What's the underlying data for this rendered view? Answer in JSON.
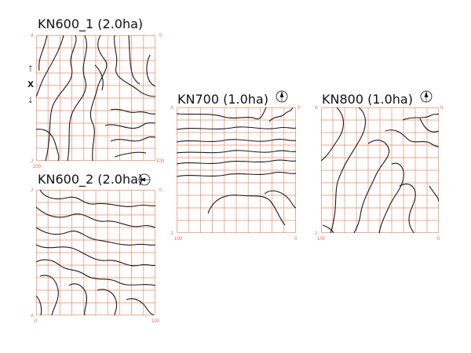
{
  "plots": {
    "kn600_1": {
      "title": "KN600_1 (2.0ha)",
      "ticks": {
        "top_left": "A",
        "top_right": "0",
        "bottom_left": "J",
        "bottom_left_num": "100",
        "bottom_right": "100"
      }
    },
    "kn600_2": {
      "title": "KN600_2 (2.0ha)",
      "ticks": {
        "top_left": "J",
        "top_right": "0",
        "bottom_left": "A",
        "bottom_left_num": "0",
        "bottom_right": "100"
      },
      "compass": "compass-west-icon"
    },
    "kn700": {
      "title": "KN700 (1.0ha)",
      "ticks": {
        "top_left": "A",
        "top_right": "0",
        "bottom_left": "J",
        "bottom_left_num": "100",
        "bottom_right": "0"
      },
      "compass": "compass-north-icon"
    },
    "kn800": {
      "title": "KN800 (1.0ha)",
      "ticks": {
        "top_left": "A",
        "top_right": "0",
        "bottom_left": "J",
        "bottom_left_num": "100",
        "bottom_right": "0"
      },
      "compass": "compass-north-icon"
    }
  },
  "axis_marker": {
    "up": "↑",
    "label": "x",
    "down": "↓"
  },
  "colors": {
    "grid": "#f08a68",
    "contour": "#1a1a1a",
    "tick": "#e06a40"
  }
}
